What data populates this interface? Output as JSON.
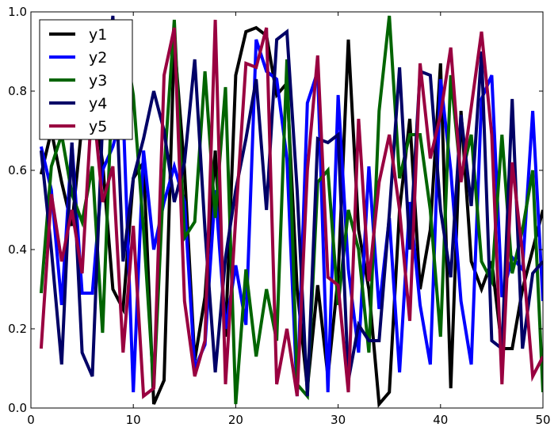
{
  "chart_data": {
    "type": "line",
    "title": "",
    "xlabel": "",
    "ylabel": "",
    "xlim": [
      0,
      50
    ],
    "ylim": [
      0,
      1
    ],
    "xticks": [
      "0",
      "10",
      "20",
      "30",
      "40",
      "50"
    ],
    "yticks": [
      "0.0",
      "0.2",
      "0.4",
      "0.6",
      "0.8",
      "1.0"
    ],
    "grid": false,
    "legend": "top-left",
    "x": [
      1,
      2,
      3,
      4,
      5,
      6,
      7,
      8,
      9,
      10,
      11,
      12,
      13,
      14,
      15,
      16,
      17,
      18,
      19,
      20,
      21,
      22,
      23,
      24,
      25,
      26,
      27,
      28,
      29,
      30,
      31,
      32,
      33,
      34,
      35,
      36,
      37,
      38,
      39,
      40,
      41,
      42,
      43,
      44,
      45,
      46,
      47,
      48,
      49,
      50
    ],
    "series": [
      {
        "name": "y1",
        "color": "#000000",
        "values": [
          0.59,
          0.7,
          0.57,
          0.46,
          0.72,
          0.8,
          0.62,
          0.3,
          0.25,
          0.58,
          0.62,
          0.01,
          0.07,
          0.93,
          0.6,
          0.12,
          0.28,
          0.65,
          0.18,
          0.84,
          0.95,
          0.96,
          0.94,
          0.79,
          0.82,
          0.3,
          0.05,
          0.31,
          0.08,
          0.33,
          0.93,
          0.45,
          0.3,
          0.01,
          0.04,
          0.5,
          0.73,
          0.3,
          0.45,
          0.87,
          0.05,
          0.75,
          0.37,
          0.3,
          0.37,
          0.15,
          0.15,
          0.3,
          0.4,
          0.5
        ]
      },
      {
        "name": "y2",
        "color": "#0000ff",
        "values": [
          0.66,
          0.55,
          0.26,
          0.67,
          0.29,
          0.29,
          0.6,
          0.66,
          0.75,
          0.04,
          0.65,
          0.4,
          0.52,
          0.61,
          0.52,
          0.1,
          0.16,
          0.55,
          0.2,
          0.36,
          0.21,
          0.93,
          0.85,
          0.83,
          0.63,
          0.03,
          0.77,
          0.85,
          0.04,
          0.79,
          0.35,
          0.14,
          0.61,
          0.25,
          0.48,
          0.09,
          0.52,
          0.26,
          0.11,
          0.83,
          0.6,
          0.27,
          0.11,
          0.78,
          0.84,
          0.28,
          0.38,
          0.35,
          0.75,
          0.27
        ]
      },
      {
        "name": "y3",
        "color": "#006400",
        "values": [
          0.29,
          0.61,
          0.69,
          0.54,
          0.47,
          0.61,
          0.19,
          0.85,
          0.95,
          0.79,
          0.45,
          0.05,
          0.6,
          0.98,
          0.43,
          0.47,
          0.85,
          0.48,
          0.81,
          0.01,
          0.35,
          0.13,
          0.3,
          0.17,
          0.88,
          0.06,
          0.03,
          0.57,
          0.6,
          0.26,
          0.5,
          0.4,
          0.14,
          0.75,
          0.99,
          0.58,
          0.69,
          0.69,
          0.5,
          0.18,
          0.84,
          0.58,
          0.69,
          0.37,
          0.32,
          0.69,
          0.34,
          0.45,
          0.6,
          0.04
        ]
      },
      {
        "name": "y4",
        "color": "#000066",
        "values": [
          0.65,
          0.4,
          0.11,
          0.67,
          0.14,
          0.08,
          0.72,
          0.99,
          0.37,
          0.58,
          0.68,
          0.8,
          0.7,
          0.52,
          0.62,
          0.88,
          0.45,
          0.09,
          0.38,
          0.55,
          0.68,
          0.83,
          0.5,
          0.93,
          0.95,
          0.55,
          0.03,
          0.68,
          0.67,
          0.69,
          0.07,
          0.21,
          0.17,
          0.17,
          0.49,
          0.86,
          0.4,
          0.85,
          0.84,
          0.5,
          0.33,
          0.74,
          0.51,
          0.9,
          0.17,
          0.15,
          0.78,
          0.15,
          0.34,
          0.37
        ]
      },
      {
        "name": "y5",
        "color": "#990040",
        "values": [
          0.15,
          0.54,
          0.37,
          0.5,
          0.34,
          0.79,
          0.52,
          0.61,
          0.14,
          0.46,
          0.03,
          0.05,
          0.84,
          0.96,
          0.27,
          0.08,
          0.17,
          0.98,
          0.06,
          0.48,
          0.87,
          0.86,
          0.96,
          0.06,
          0.2,
          0.03,
          0.6,
          0.89,
          0.33,
          0.31,
          0.04,
          0.73,
          0.32,
          0.57,
          0.69,
          0.5,
          0.22,
          0.87,
          0.63,
          0.74,
          0.91,
          0.57,
          0.76,
          0.95,
          0.69,
          0.06,
          0.62,
          0.39,
          0.08,
          0.13
        ]
      }
    ]
  }
}
